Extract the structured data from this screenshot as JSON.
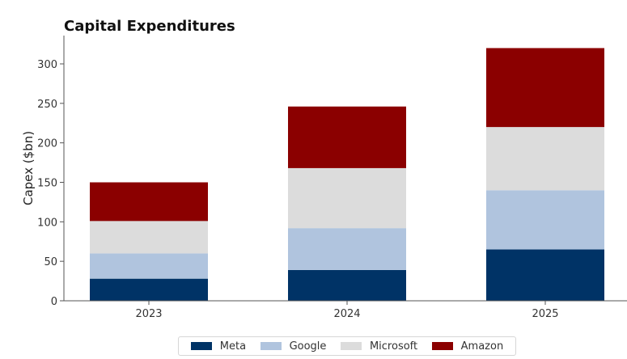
{
  "chart_data": {
    "type": "bar",
    "stacked": true,
    "title": "Capital Expenditures",
    "xlabel": "",
    "ylabel": "Capex ($bn)",
    "categories": [
      "2023",
      "2024",
      "2025"
    ],
    "series": [
      {
        "name": "Meta",
        "color": "#003366",
        "values": [
          28,
          39,
          65
        ]
      },
      {
        "name": "Google",
        "color": "#b0c4de",
        "values": [
          32,
          53,
          75
        ]
      },
      {
        "name": "Microsoft",
        "color": "#dcdcdc",
        "values": [
          41,
          76,
          80
        ]
      },
      {
        "name": "Amazon",
        "color": "#8b0000",
        "values": [
          49,
          78,
          100
        ]
      }
    ],
    "ylim": [
      0,
      330
    ],
    "yticks": [
      "0",
      "50",
      "100",
      "150",
      "200",
      "250",
      "300"
    ],
    "grid": false,
    "legend_position": "bottom-center"
  }
}
